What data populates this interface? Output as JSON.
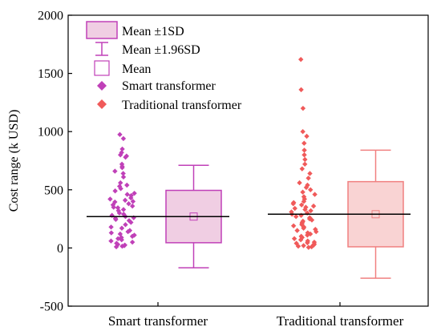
{
  "chart_data": {
    "type": "scatter",
    "ylabel": "Cost range (k USD)",
    "ylim": [
      -500,
      2000
    ],
    "y_ticks": [
      -500,
      0,
      500,
      1000,
      1500,
      2000
    ],
    "categories": [
      "Smart  transformer",
      "Traditional  transformer"
    ],
    "legend": {
      "placement": "top-left",
      "entries": [
        "Mean ±1SD",
        "Mean ±1.96SD",
        "Mean",
        "Smart  transformer",
        "Traditional  transformer"
      ]
    },
    "series": [
      {
        "name": "Smart  transformer",
        "color": "#c040b8",
        "box_color": "#c040b8",
        "box_fill": "#f0cee3",
        "mean": 270,
        "sd_low": 45,
        "sd_high": 495,
        "whisker_low": -170,
        "whisker_high": 710,
        "values": [
          975,
          940,
          850,
          820,
          800,
          790,
          780,
          720,
          700,
          690,
          660,
          640,
          610,
          560,
          540,
          530,
          510,
          490,
          470,
          460,
          450,
          430,
          420,
          410,
          400,
          395,
          380,
          370,
          360,
          350,
          345,
          330,
          320,
          300,
          290,
          280,
          270,
          260,
          255,
          245,
          235,
          220,
          200,
          180,
          170,
          150,
          140,
          130,
          120,
          110,
          100,
          90,
          80,
          70,
          60,
          50,
          40,
          30,
          25,
          20,
          15,
          10
        ]
      },
      {
        "name": "Traditional  transformer",
        "color": "#f05a5a",
        "box_color": "#f08080",
        "box_fill": "#f9d3d3",
        "mean": 290,
        "sd_low": 10,
        "sd_high": 570,
        "whisker_low": -260,
        "whisker_high": 840,
        "values": [
          1620,
          1360,
          1200,
          1000,
          960,
          900,
          840,
          800,
          760,
          720,
          680,
          640,
          600,
          560,
          540,
          520,
          500,
          480,
          460,
          440,
          420,
          400,
          390,
          380,
          370,
          360,
          350,
          340,
          330,
          320,
          310,
          300,
          290,
          280,
          270,
          260,
          250,
          240,
          230,
          220,
          210,
          200,
          190,
          180,
          170,
          160,
          150,
          140,
          130,
          120,
          110,
          100,
          90,
          80,
          70,
          60,
          50,
          45,
          40,
          35,
          30,
          25,
          20,
          15,
          10,
          5
        ]
      }
    ]
  }
}
